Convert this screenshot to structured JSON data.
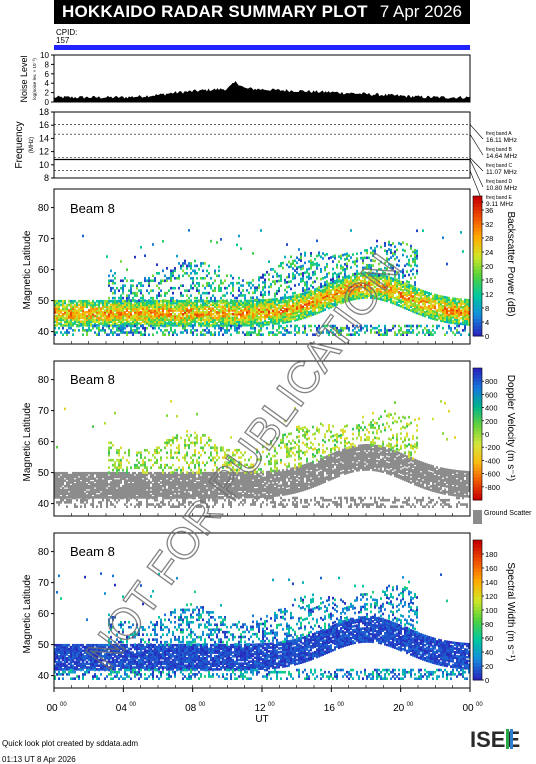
{
  "header": {
    "title": "HOKKAIDO RADAR SUMMARY PLOT",
    "date": "7 Apr 2026",
    "cpid_label": "CPID:",
    "cpid_value": "157"
  },
  "footer": {
    "line1": "Quick look plot created by sddata.adm",
    "line2": "01:13 UT  8 Apr 2026"
  },
  "logo_text": "ISEE",
  "watermark": "NOT FOR PUBLICATION",
  "x_axis": {
    "label": "UT",
    "ticks": [
      "00",
      "04",
      "08",
      "12",
      "16",
      "20",
      "00"
    ],
    "tick_superscript": "00"
  },
  "colors": {
    "cpid_bar": "#2323ff",
    "ground_scatter": "#8c8c8c",
    "noise_fill": "#000000"
  },
  "chart_data": [
    {
      "type": "area",
      "panel": "noise",
      "ylabel": "Noise Level",
      "ylabel_small": "log(noise lev. × 10⁻³)",
      "ylim": [
        0,
        10
      ],
      "yticks": [
        "0",
        "2",
        "4",
        "6",
        "8",
        "10"
      ],
      "x_hours": [
        0,
        1,
        2,
        3,
        4,
        5,
        6,
        7,
        8,
        9,
        10,
        10.5,
        11,
        12,
        13,
        14,
        15,
        16,
        17,
        18,
        19,
        20,
        21,
        22,
        23,
        24
      ],
      "values": [
        1.0,
        1.0,
        1.0,
        1.0,
        1.0,
        1.2,
        1.5,
        2.0,
        2.3,
        2.6,
        2.8,
        4.3,
        2.9,
        2.7,
        2.5,
        2.4,
        2.2,
        2.1,
        1.9,
        1.7,
        1.5,
        1.3,
        1.1,
        1.0,
        1.0,
        1.0
      ]
    },
    {
      "type": "line",
      "panel": "frequency",
      "ylabel": "Frequency",
      "yunit": "(MHz)",
      "ylim": [
        8,
        18
      ],
      "yticks": [
        "8",
        "10",
        "12",
        "14",
        "16",
        "18"
      ],
      "bands": [
        {
          "label": "freq band A",
          "value_text": "16.11 MHz",
          "freq": 16.11
        },
        {
          "label": "freq band B",
          "value_text": "14.64 MHz",
          "freq": 14.64
        },
        {
          "label": "freq band C",
          "value_text": "11.07 MHz",
          "freq": 11.07
        },
        {
          "label": "freq band D",
          "value_text": "10.80 MHz",
          "freq": 10.8
        },
        {
          "label": "freq band E",
          "value_text": "9.11 MHz",
          "freq": 9.11
        }
      ],
      "operating_freq": 10.8
    },
    {
      "type": "heatmap",
      "panel": "power",
      "beam": "Beam  8",
      "ylabel": "Magnetic Latitude",
      "ylim": [
        36,
        86
      ],
      "yticks": [
        "40",
        "50",
        "60",
        "70",
        "80"
      ],
      "colorbar_label": "Backscatter Power (dB)",
      "colorbar_ticks": [
        "0",
        "4",
        "8",
        "12",
        "16",
        "20",
        "24",
        "28",
        "32",
        "36"
      ],
      "colorbar_range": [
        0,
        40
      ]
    },
    {
      "type": "heatmap",
      "panel": "velocity",
      "beam": "Beam  8",
      "ylabel": "Magnetic Latitude",
      "ylim": [
        36,
        86
      ],
      "yticks": [
        "40",
        "50",
        "60",
        "70",
        "80"
      ],
      "colorbar_label": "Doppler Velocity (m s⁻¹)",
      "colorbar_ticks": [
        "-800",
        "-600",
        "-400",
        "-200",
        "0",
        "200",
        "400",
        "600",
        "800"
      ],
      "colorbar_range": [
        -1000,
        1000
      ],
      "ground_scatter_label": "Ground Scatter"
    },
    {
      "type": "heatmap",
      "panel": "width",
      "beam": "Beam  8",
      "ylabel": "Magnetic Latitude",
      "ylim": [
        36,
        86
      ],
      "yticks": [
        "40",
        "50",
        "60",
        "70",
        "80"
      ],
      "colorbar_label": "Spectral Width (m s⁻¹)",
      "colorbar_ticks": [
        "0",
        "20",
        "40",
        "60",
        "80",
        "100",
        "120",
        "140",
        "160",
        "180"
      ],
      "colorbar_range": [
        0,
        200
      ]
    }
  ]
}
